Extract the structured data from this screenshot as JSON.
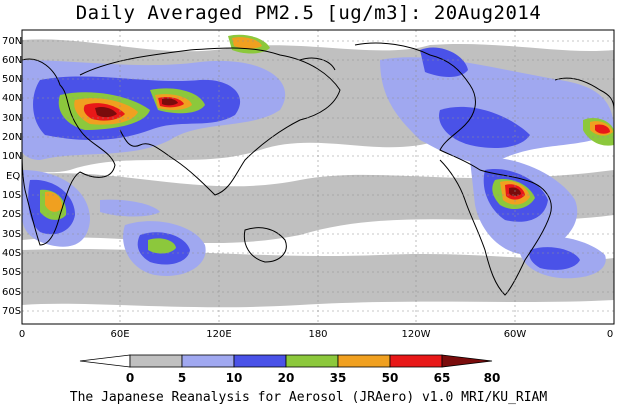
{
  "title": "Daily Averaged PM2.5 [ug/m3]: 20Aug2014",
  "credit": "The Japanese Reanalysis for Aerosol (JRAero) v1.0 MRI/KU_RIAM",
  "lat_labels": [
    "70N",
    "60N",
    "50N",
    "40N",
    "30N",
    "20N",
    "10N",
    "EQ",
    "10S",
    "20S",
    "30S",
    "40S",
    "50S",
    "60S",
    "70S"
  ],
  "lon_labels": [
    "0",
    "60E",
    "120E",
    "180",
    "120W",
    "60W",
    "0"
  ],
  "colorbar": {
    "levels": [
      "0",
      "5",
      "10",
      "20",
      "35",
      "50",
      "65",
      "80"
    ],
    "colors": [
      "#ffffff",
      "#c0c0c0",
      "#a0a8f0",
      "#4a52e8",
      "#8cc83c",
      "#f0a020",
      "#e81818",
      "#7a0c0c"
    ]
  },
  "ocean_color": "#ffffff"
}
